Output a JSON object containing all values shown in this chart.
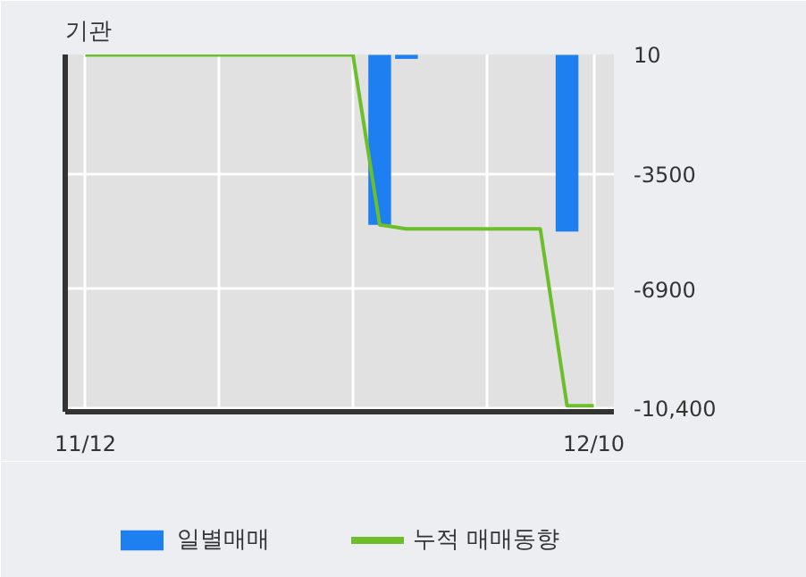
{
  "chart_data": {
    "type": "bar",
    "title": "기관",
    "categories": [
      "11/12",
      null,
      null,
      null,
      null,
      null,
      null,
      null,
      null,
      null,
      null,
      null,
      null,
      null,
      null,
      null,
      null,
      null,
      null,
      "12/10"
    ],
    "series": [
      {
        "name": "일별매매",
        "color": "#1e7ff0",
        "values": [
          0,
          0,
          0,
          0,
          0,
          0,
          0,
          0,
          0,
          0,
          0,
          -5000,
          -120,
          0,
          0,
          0,
          0,
          0,
          -5200,
          0
        ]
      },
      {
        "name": "누적 매매동향",
        "type": "line",
        "color": "#6cbf2a",
        "values": [
          0,
          0,
          0,
          0,
          0,
          0,
          0,
          0,
          0,
          0,
          0,
          -5000,
          -5120,
          -5120,
          -5120,
          -5120,
          -5120,
          -5120,
          -10320,
          -10320
        ]
      }
    ],
    "ylim": [
      -10500,
      10
    ],
    "yticks": [
      10,
      -3500,
      -6900,
      {
        "value": -10400,
        "label": "-10,400"
      }
    ],
    "grid": true,
    "legend": "bottom"
  }
}
